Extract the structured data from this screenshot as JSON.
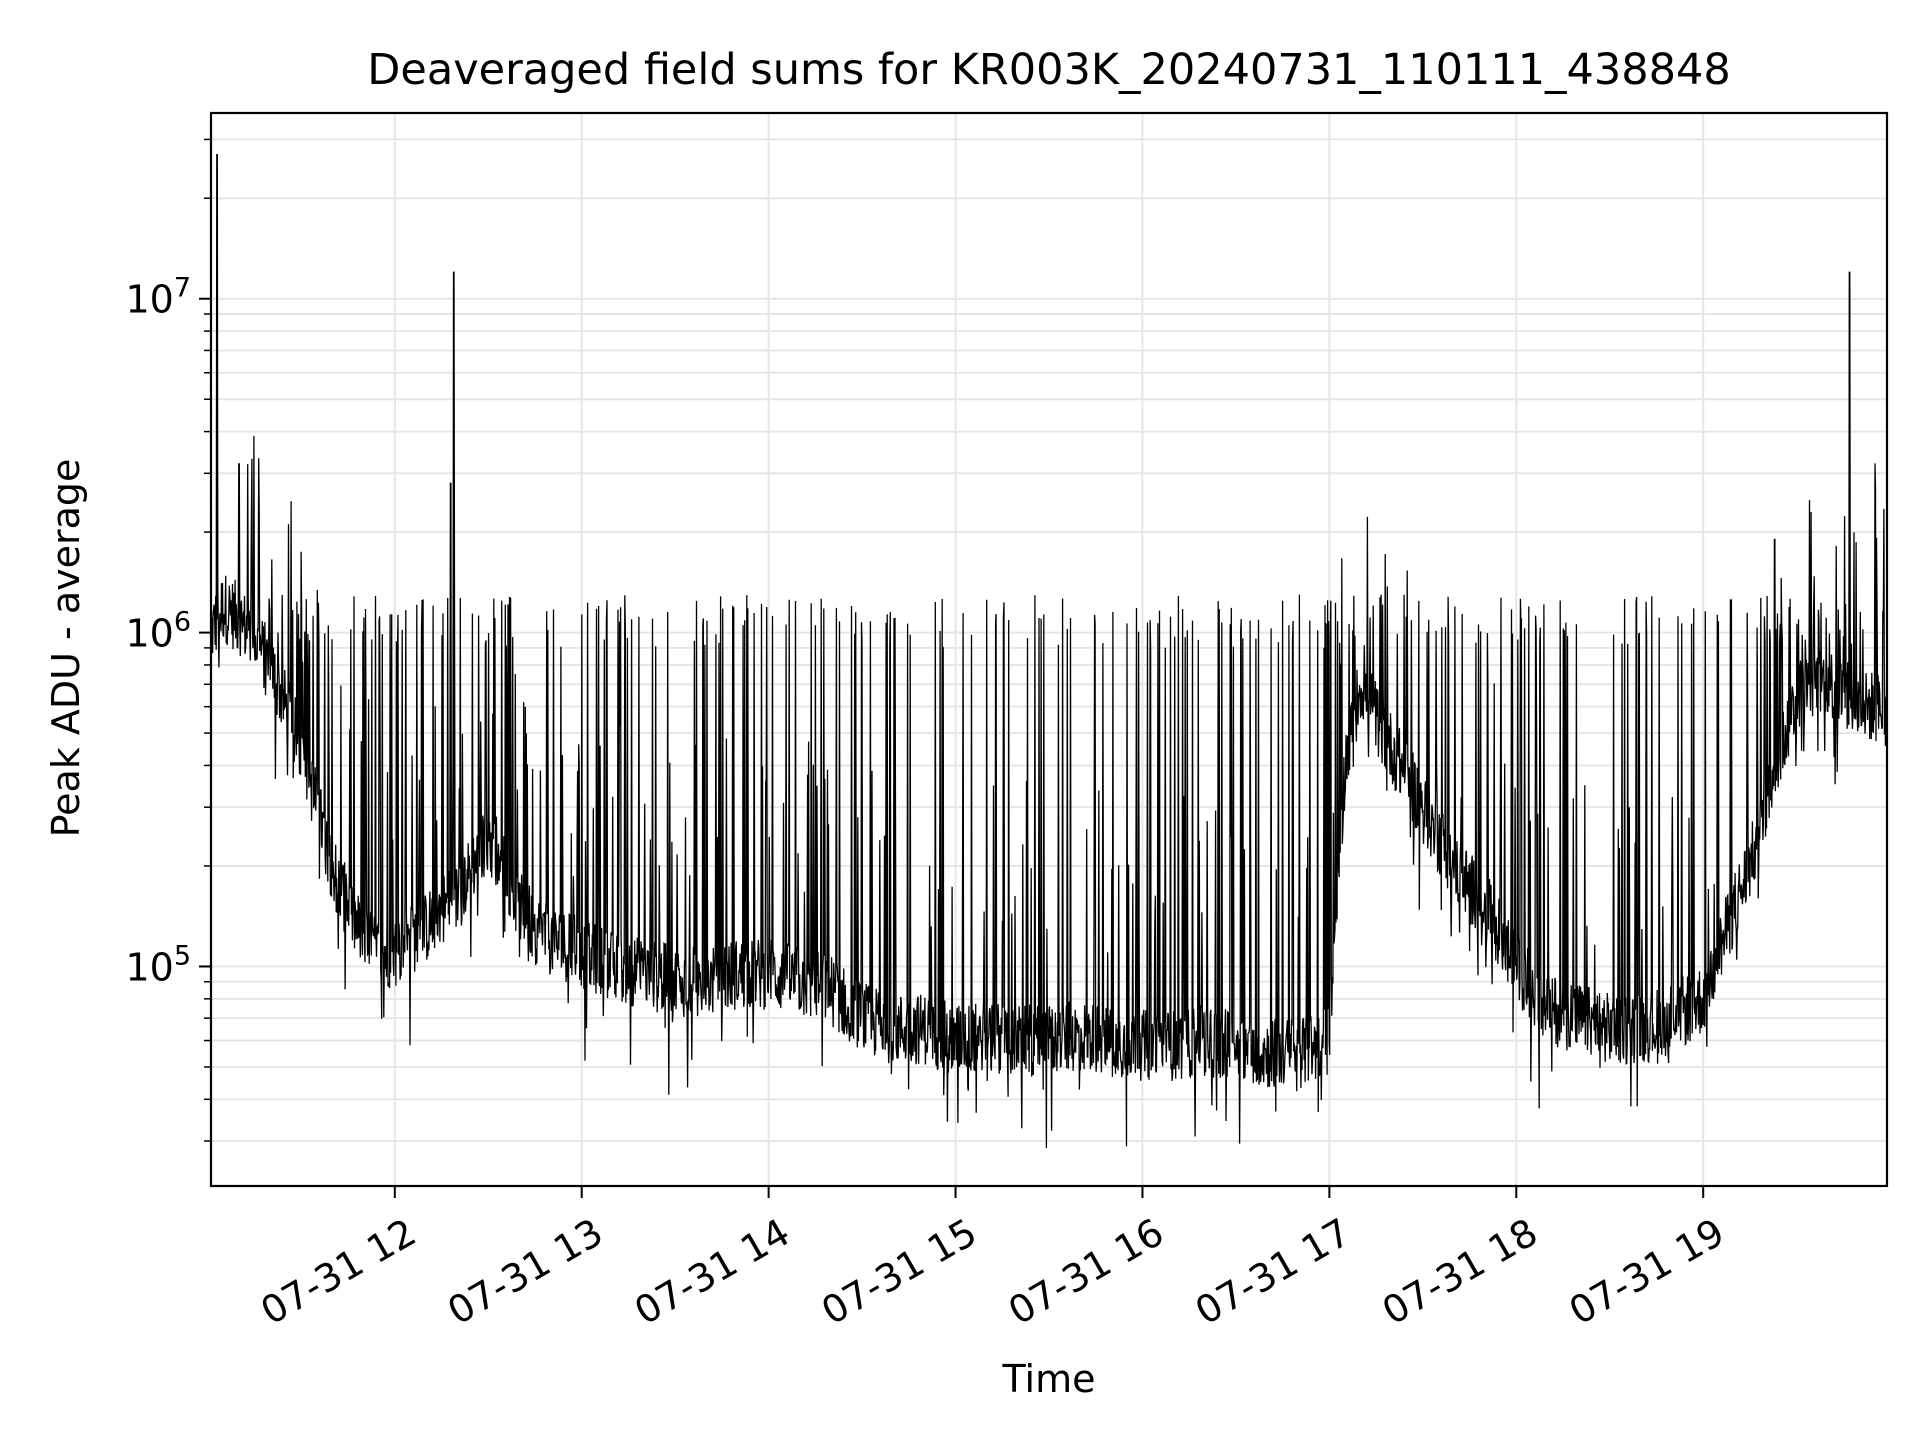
{
  "chart_data": {
    "type": "line",
    "title": "Deaveraged field sums for KR003K_20240731_110111_438848",
    "xlabel": "Time",
    "ylabel": "Peak ADU - average",
    "yscale": "log",
    "xlim": [
      "2024-07-31 11:01",
      "2024-07-31 19:59"
    ],
    "ylim": [
      22000,
      36000000
    ],
    "grid": true,
    "x_ticks": [
      {
        "t": "2024-07-31 12:00",
        "label": "07-31 12"
      },
      {
        "t": "2024-07-31 13:00",
        "label": "07-31 13"
      },
      {
        "t": "2024-07-31 14:00",
        "label": "07-31 14"
      },
      {
        "t": "2024-07-31 15:00",
        "label": "07-31 15"
      },
      {
        "t": "2024-07-31 16:00",
        "label": "07-31 16"
      },
      {
        "t": "2024-07-31 17:00",
        "label": "07-31 17"
      },
      {
        "t": "2024-07-31 18:00",
        "label": "07-31 18"
      },
      {
        "t": "2024-07-31 19:00",
        "label": "07-31 19"
      }
    ],
    "y_ticks": [
      {
        "value": 100000,
        "base": "10",
        "exp": "5"
      },
      {
        "value": 1000000,
        "base": "10",
        "exp": "6"
      },
      {
        "value": 10000000,
        "base": "10",
        "exp": "7"
      }
    ],
    "line_color": "#000000",
    "x": [
      "2024-07-31 11:01",
      "2024-07-31 11:05",
      "2024-07-31 11:10",
      "2024-07-31 11:15",
      "2024-07-31 11:20",
      "2024-07-31 11:25",
      "2024-07-31 11:30",
      "2024-07-31 11:35",
      "2024-07-31 11:40",
      "2024-07-31 11:45",
      "2024-07-31 11:50",
      "2024-07-31 11:55",
      "2024-07-31 12:00",
      "2024-07-31 12:05",
      "2024-07-31 12:10",
      "2024-07-31 12:15",
      "2024-07-31 12:20",
      "2024-07-31 12:25",
      "2024-07-31 12:30",
      "2024-07-31 12:35",
      "2024-07-31 12:40",
      "2024-07-31 12:45",
      "2024-07-31 12:50",
      "2024-07-31 12:55",
      "2024-07-31 13:00",
      "2024-07-31 13:10",
      "2024-07-31 13:20",
      "2024-07-31 13:30",
      "2024-07-31 13:40",
      "2024-07-31 13:50",
      "2024-07-31 14:00",
      "2024-07-31 14:10",
      "2024-07-31 14:20",
      "2024-07-31 14:30",
      "2024-07-31 14:40",
      "2024-07-31 14:50",
      "2024-07-31 15:00",
      "2024-07-31 15:10",
      "2024-07-31 15:20",
      "2024-07-31 15:30",
      "2024-07-31 15:40",
      "2024-07-31 15:50",
      "2024-07-31 16:00",
      "2024-07-31 16:10",
      "2024-07-31 16:20",
      "2024-07-31 16:30",
      "2024-07-31 16:40",
      "2024-07-31 16:50",
      "2024-07-31 17:00",
      "2024-07-31 17:05",
      "2024-07-31 17:10",
      "2024-07-31 17:20",
      "2024-07-31 17:30",
      "2024-07-31 17:40",
      "2024-07-31 17:50",
      "2024-07-31 18:00",
      "2024-07-31 18:10",
      "2024-07-31 18:20",
      "2024-07-31 18:30",
      "2024-07-31 18:40",
      "2024-07-31 18:50",
      "2024-07-31 19:00",
      "2024-07-31 19:05",
      "2024-07-31 19:10",
      "2024-07-31 19:15",
      "2024-07-31 19:20",
      "2024-07-31 19:25",
      "2024-07-31 19:30",
      "2024-07-31 19:35",
      "2024-07-31 19:40",
      "2024-07-31 19:45",
      "2024-07-31 19:50",
      "2024-07-31 19:55",
      "2024-07-31 19:59"
    ],
    "y": [
      1000000,
      1200000,
      1100000,
      950000,
      800000,
      600000,
      450000,
      300000,
      200000,
      150000,
      120000,
      110000,
      110000,
      120000,
      130000,
      150000,
      160000,
      200000,
      250000,
      200000,
      150000,
      130000,
      120000,
      115000,
      110000,
      100000,
      95000,
      90000,
      90000,
      95000,
      95000,
      90000,
      85000,
      70000,
      65000,
      65000,
      60000,
      62000,
      60000,
      60000,
      62000,
      60000,
      58000,
      58000,
      60000,
      58000,
      55000,
      55000,
      60000,
      400000,
      700000,
      450000,
      300000,
      200000,
      150000,
      100000,
      75000,
      70000,
      65000,
      65000,
      70000,
      80000,
      110000,
      150000,
      200000,
      300000,
      450000,
      650000,
      700000,
      720000,
      650000,
      600000,
      600000,
      580000
    ],
    "spikes": [
      {
        "x": "2024-07-31 11:03",
        "y": 27000000
      },
      {
        "x": "2024-07-31 12:19",
        "y": 12000000
      },
      {
        "x": "2024-07-31 12:18",
        "y": 2800000
      },
      {
        "x": "2024-07-31 19:47",
        "y": 12000000
      },
      {
        "x": "2024-07-31 19:23",
        "y": 1900000
      },
      {
        "x": "2024-07-31 11:10",
        "y": 3200000
      }
    ]
  }
}
